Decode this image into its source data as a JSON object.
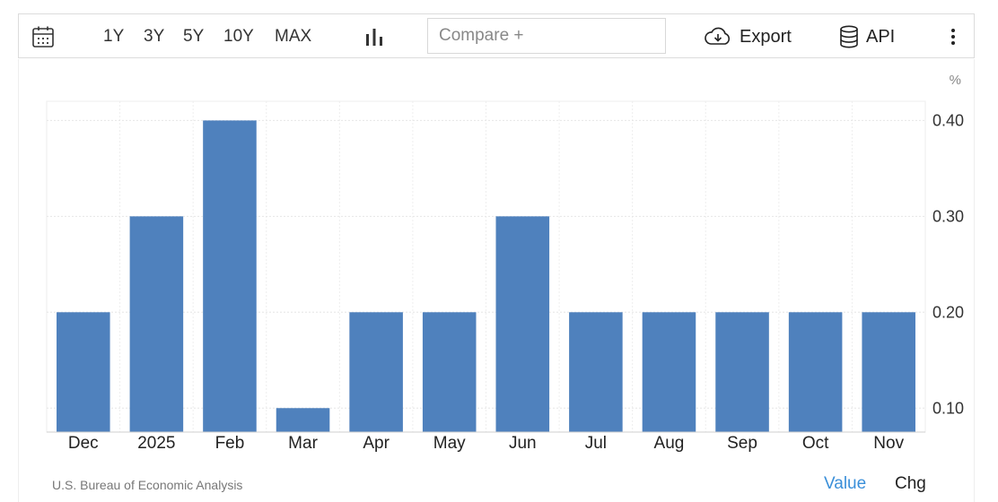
{
  "toolbar": {
    "ranges": [
      "1Y",
      "3Y",
      "5Y",
      "10Y",
      "MAX"
    ],
    "compare_placeholder": "Compare +",
    "export_label": "Export",
    "api_label": "API",
    "icons": {
      "calendar": "calendar-icon",
      "chart_type": "bar-chart-icon",
      "export": "cloud-download-icon",
      "api": "database-icon",
      "more": "more-vertical-icon"
    }
  },
  "chart_data": {
    "type": "bar",
    "categories": [
      "Dec",
      "2025",
      "Feb",
      "Mar",
      "Apr",
      "May",
      "Jun",
      "Jul",
      "Aug",
      "Sep",
      "Oct",
      "Nov"
    ],
    "values": [
      0.2,
      0.3,
      0.4,
      0.1,
      0.2,
      0.2,
      0.3,
      0.2,
      0.2,
      0.2,
      0.2,
      0.2
    ],
    "unit": "%",
    "y_ticks": [
      "0.10",
      "0.20",
      "0.30",
      "0.40"
    ],
    "ylim": [
      0.075,
      0.42
    ],
    "y_axis_side": "right",
    "grid": true,
    "bar_color": "#4f81bd"
  },
  "footer": {
    "source": "U.S. Bureau of Economic Analysis",
    "value_label": "Value",
    "chg_label": "Chg"
  },
  "colors": {
    "accent": "#3a8fd9",
    "bar": "#4f81bd"
  }
}
